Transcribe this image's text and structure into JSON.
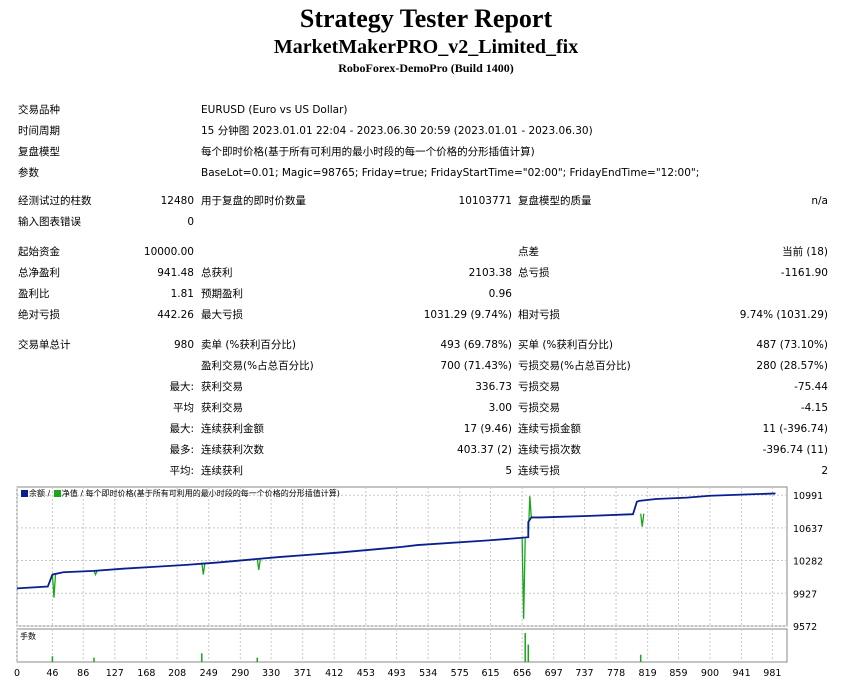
{
  "report": {
    "title": "Strategy Tester Report",
    "expert": "MarketMakerPRO_v2_Limited_fix",
    "server": "RoboForex-DemoPro (Build 1400)"
  },
  "info": {
    "symbol_label": "交易品种",
    "symbol_value": "EURUSD (Euro vs US Dollar)",
    "period_label": "时间周期",
    "period_value": "15 分钟图 2023.01.01 22:04 - 2023.06.30 20:59 (2023.01.01 - 2023.06.30)",
    "model_label": "复盘模型",
    "model_value": "每个即时价格(基于所有可利用的最小时段的每一个价格的分形插值计算)",
    "params_label": "参数",
    "params_value": "BaseLot=0.01; Magic=98765; Friday=true; FridayStartTime=\"02:00\"; FridayEndTime=\"12:00\";"
  },
  "bars": {
    "tested_label": "经测试过的柱数",
    "tested_value": "12480",
    "ticks_label": "用于复盘的即时价数量",
    "ticks_value": "10103771",
    "quality_label": "复盘模型的质量",
    "quality_value": "n/a",
    "errors_label": "输入图表错误",
    "errors_value": "0"
  },
  "stats": {
    "deposit_label": "起始资金",
    "deposit_value": "10000.00",
    "spread_label": "点差",
    "spread_value": "当前 (18)",
    "net_label": "总净盈利",
    "net_value": "941.48",
    "gross_profit_label": "总获利",
    "gross_profit_value": "2103.38",
    "gross_loss_label": "总亏损",
    "gross_loss_value": "-1161.90",
    "pf_label": "盈利比",
    "pf_value": "1.81",
    "payoff_label": "预期盈利",
    "payoff_value": "0.96",
    "abs_dd_label": "绝对亏损",
    "abs_dd_value": "442.26",
    "max_dd_label": "最大亏损",
    "max_dd_value": "1031.29 (9.74%)",
    "rel_dd_label": "相对亏损",
    "rel_dd_value": "9.74% (1031.29)"
  },
  "trades": {
    "total_label": "交易单总计",
    "total_value": "980",
    "short_label": "卖单 (%获利百分比)",
    "short_value": "493 (69.78%)",
    "long_label": "买单 (%获利百分比)",
    "long_value": "487 (73.10%)",
    "profit_trades_label": "盈利交易(%占总百分比)",
    "profit_trades_value": "700 (71.43%)",
    "loss_trades_label": "亏损交易(%占总百分比)",
    "loss_trades_value": "280 (28.57%)",
    "largest_prefix": "最大:",
    "largest_profit_label": "获利交易",
    "largest_profit_value": "336.73",
    "largest_loss_label": "亏损交易",
    "largest_loss_value": "-75.44",
    "average_prefix": "平均",
    "average_profit_label": "获利交易",
    "average_profit_value": "3.00",
    "average_loss_label": "亏损交易",
    "average_loss_value": "-4.15",
    "max_consec_prefix": "最大:",
    "max_consec_wins_label": "连续获利金额",
    "max_consec_wins_value": "17 (9.46)",
    "max_consec_losses_label": "连续亏损金额",
    "max_consec_losses_value": "11 (-396.74)",
    "maximal_prefix": "最多:",
    "maximal_profit_label": "连续获利次数",
    "maximal_profit_value": "403.37 (2)",
    "maximal_loss_label": "连续亏损次数",
    "maximal_loss_value": "-396.74 (11)",
    "avg_consec_prefix": "平均:",
    "avg_consec_wins_label": "连续获利",
    "avg_consec_wins_value": "5",
    "avg_consec_losses_label": "连续亏损",
    "avg_consec_losses_value": "2"
  },
  "chart_legend": {
    "balance": "余额",
    "sep1": "/",
    "equity": "净值",
    "sep2": "/",
    "model": "每个即时价格(基于所有可利用的最小时段的每一个价格的分形插值计算)",
    "volume": "手数"
  },
  "colors": {
    "balance": "#0a1f8f",
    "equity": "#1aa61a",
    "grid": "#c8c8c8",
    "border": "#888888"
  },
  "chart_data": {
    "type": "line",
    "title": "",
    "xlabel": "",
    "ylabel": "",
    "x_ticks": [
      0,
      46,
      86,
      127,
      168,
      208,
      249,
      290,
      330,
      371,
      412,
      453,
      493,
      534,
      575,
      615,
      656,
      697,
      737,
      778,
      819,
      859,
      900,
      941,
      981
    ],
    "y_ticks": [
      10991,
      10637,
      10282,
      9927,
      9572
    ],
    "xlim": [
      0,
      1000
    ],
    "ylim": [
      9572,
      11080
    ],
    "grid": true,
    "series": [
      {
        "name": "余额",
        "x": [
          0,
          40,
          46,
          60,
          100,
          140,
          180,
          220,
          260,
          300,
          340,
          380,
          420,
          460,
          480,
          500,
          520,
          610,
          650,
          664,
          664,
          668,
          680,
          700,
          740,
          800,
          805,
          808,
          830,
          870,
          900,
          950,
          985
        ],
        "y": [
          9980,
          10000,
          10130,
          10155,
          10170,
          10195,
          10215,
          10235,
          10260,
          10290,
          10320,
          10345,
          10370,
          10400,
          10415,
          10430,
          10450,
          10500,
          10525,
          10535,
          10700,
          10750,
          10750,
          10755,
          10765,
          10785,
          10920,
          10930,
          10950,
          10965,
          10985,
          11000,
          11010
        ]
      },
      {
        "name": "净值",
        "x": [
          46,
          48,
          50,
          100,
          102,
          104,
          240,
          242,
          244,
          312,
          314,
          316,
          656,
          658,
          660,
          664,
          666,
          668,
          810,
          812,
          814
        ],
        "y": [
          10130,
          9880,
          10130,
          10170,
          10130,
          10170,
          10260,
          10130,
          10260,
          10300,
          10180,
          10300,
          10520,
          9650,
          10520,
          10535,
          10980,
          10740,
          10790,
          10650,
          10790
        ]
      }
    ],
    "volume": {
      "x": [
        46,
        100,
        240,
        312,
        660,
        664,
        810
      ],
      "y": [
        0.2,
        0.15,
        0.3,
        0.15,
        1.0,
        0.6,
        0.25
      ]
    }
  }
}
